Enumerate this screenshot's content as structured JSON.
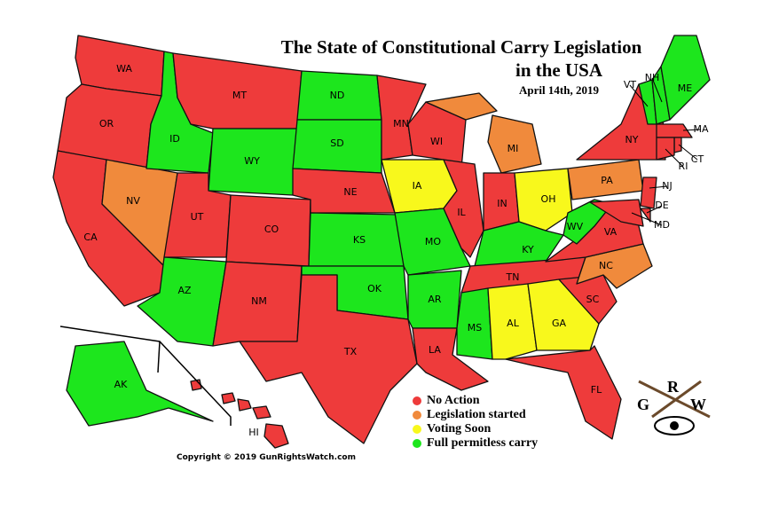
{
  "title": [
    "The State of Constitutional Carry Legislation",
    "in the USA"
  ],
  "date": "April 14th, 2019",
  "states": [
    {
      "label": "WA",
      "color": "#ee3b3b"
    },
    {
      "label": "OR",
      "color": "#ee3b3b"
    },
    {
      "label": "CA",
      "color": "#ee3b3b"
    },
    {
      "label": "NV",
      "color": "#f08a3c"
    },
    {
      "label": "ID",
      "color": "#1de61d"
    },
    {
      "label": "MT",
      "color": "#ee3b3b"
    },
    {
      "label": "WY",
      "color": "#1de61d"
    },
    {
      "label": "UT",
      "color": "#ee3b3b"
    },
    {
      "label": "CO",
      "color": "#ee3b3b"
    },
    {
      "label": "AZ",
      "color": "#1de61d"
    },
    {
      "label": "NM",
      "color": "#ee3b3b"
    },
    {
      "label": "ND",
      "color": "#1de61d"
    },
    {
      "label": "SD",
      "color": "#1de61d"
    },
    {
      "label": "NE",
      "color": "#ee3b3b"
    },
    {
      "label": "KS",
      "color": "#1de61d"
    },
    {
      "label": "OK",
      "color": "#1de61d"
    },
    {
      "label": "TX",
      "color": "#ee3b3b"
    },
    {
      "label": "MN",
      "color": "#ee3b3b"
    },
    {
      "label": "IA",
      "color": "#f8f81c"
    },
    {
      "label": "MO",
      "color": "#1de61d"
    },
    {
      "label": "AR",
      "color": "#1de61d"
    },
    {
      "label": "LA",
      "color": "#ee3b3b"
    },
    {
      "label": "WI",
      "color": "#ee3b3b"
    },
    {
      "label": "IL",
      "color": "#ee3b3b"
    },
    {
      "label": "MI",
      "color": "#f08a3c"
    },
    {
      "label": "IN",
      "color": "#ee3b3b"
    },
    {
      "label": "OH",
      "color": "#f8f81c"
    },
    {
      "label": "KY",
      "color": "#1de61d"
    },
    {
      "label": "TN",
      "color": "#ee3b3b"
    },
    {
      "label": "MS",
      "color": "#1de61d"
    },
    {
      "label": "AL",
      "color": "#f8f81c"
    },
    {
      "label": "GA",
      "color": "#f8f81c"
    },
    {
      "label": "FL",
      "color": "#ee3b3b"
    },
    {
      "label": "SC",
      "color": "#ee3b3b"
    },
    {
      "label": "NC",
      "color": "#f08a3c"
    },
    {
      "label": "VA",
      "color": "#ee3b3b"
    },
    {
      "label": "WV",
      "color": "#1de61d"
    },
    {
      "label": "PA",
      "color": "#f08a3c"
    },
    {
      "label": "NY",
      "color": "#ee3b3b"
    },
    {
      "label": "NJ",
      "color": "#ee3b3b"
    },
    {
      "label": "DE",
      "color": "#ee3b3b"
    },
    {
      "label": "MD",
      "color": "#ee3b3b"
    },
    {
      "label": "VT",
      "color": "#1de61d"
    },
    {
      "label": "NH",
      "color": "#1de61d"
    },
    {
      "label": "ME",
      "color": "#1de61d"
    },
    {
      "label": "MA",
      "color": "#ee3b3b"
    },
    {
      "label": "CT",
      "color": "#ee3b3b"
    },
    {
      "label": "RI",
      "color": "#ee3b3b"
    },
    {
      "label": "AK",
      "color": "#1de61d"
    },
    {
      "label": "HI",
      "color": "#ee3b3b"
    }
  ],
  "legend": [
    {
      "label": "No Action",
      "color": "#ee3b3b"
    },
    {
      "label": "Legislation started",
      "color": "#f08a3c"
    },
    {
      "label": "Voting Soon",
      "color": "#f8f81c"
    },
    {
      "label": "Full permitless carry",
      "color": "#1de61d"
    }
  ],
  "copyright": "Copyright © 2019 GunRightsWatch.com",
  "logo": [
    "G",
    "R",
    "W"
  ]
}
